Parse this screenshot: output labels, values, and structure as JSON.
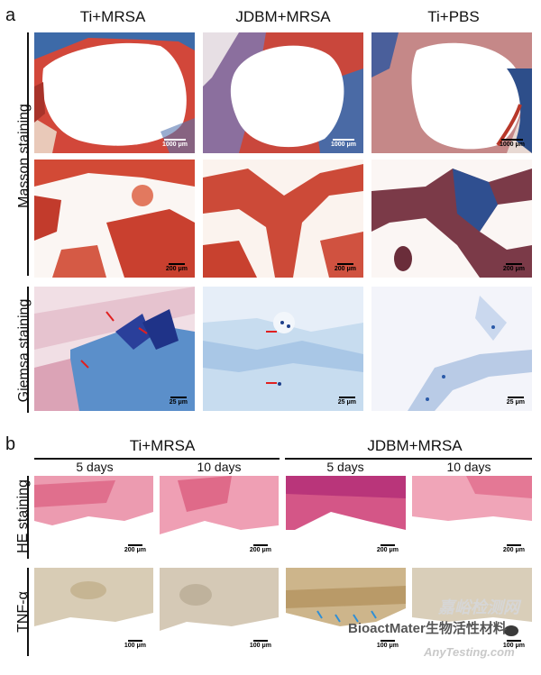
{
  "panel_a": {
    "letter": "a",
    "columns": [
      "Ti+MRSA",
      "JDBM+MRSA",
      "Ti+PBS"
    ],
    "row_labels": {
      "masson": "Masson staining",
      "giemsa": "Giemsa staining"
    },
    "scale_bars": {
      "masson_low": "1000 μm",
      "masson_high": "200 μm",
      "giemsa": "25 μm"
    }
  },
  "panel_b": {
    "letter": "b",
    "groups": [
      "Ti+MRSA",
      "JDBM+MRSA"
    ],
    "timepoints": [
      "5 days",
      "10 days",
      "5 days",
      "10 days"
    ],
    "row_labels": {
      "he": "HE staining",
      "tnf": "TNF-α"
    },
    "scale_bars": {
      "he": "200 μm",
      "tnf": "100 μm"
    }
  },
  "watermark": {
    "account": "BioactMater生物活性材料",
    "site_cn": "嘉峪检测网",
    "site_en": "AnyTesting.com"
  },
  "colors": {
    "masson_red": "#c8382a",
    "masson_blue": "#3a5c9c",
    "giemsa_blue": "#6f9fd0",
    "he_pink": "#e46f8c",
    "tnf_brown": "#b9a07a",
    "arrow_red": "#e02020",
    "arrow_blue": "#2f8fd6"
  }
}
